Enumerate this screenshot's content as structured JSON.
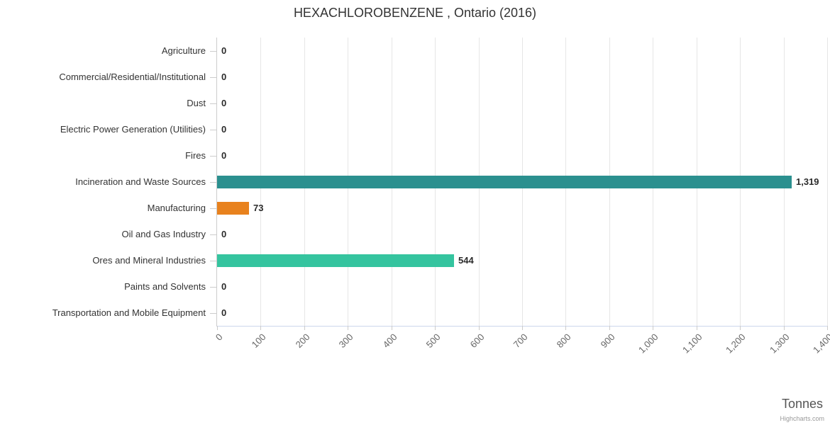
{
  "chart_data": {
    "type": "bar",
    "title": "HEXACHLOROBENZENE , Ontario (2016)",
    "xlabel": "Tonnes",
    "credit": "Highcharts.com",
    "xlim": [
      0,
      1400
    ],
    "tick_interval": 100,
    "tick_labels": [
      "0",
      "100",
      "200",
      "300",
      "400",
      "500",
      "600",
      "700",
      "800",
      "900",
      "1,000",
      "1,100",
      "1,200",
      "1,300",
      "1,400"
    ],
    "grid": true,
    "legend": "none",
    "categories": [
      "Agriculture",
      "Commercial/Residential/Institutional",
      "Dust",
      "Electric Power Generation (Utilities)",
      "Fires",
      "Incineration and Waste Sources",
      "Manufacturing",
      "Oil and Gas Industry",
      "Ores and Mineral Industries",
      "Paints and Solvents",
      "Transportation and Mobile Equipment"
    ],
    "values": [
      0,
      0,
      0,
      0,
      0,
      1319,
      73,
      0,
      544,
      0,
      0
    ],
    "value_labels": [
      "0",
      "0",
      "0",
      "0",
      "0",
      "1,319",
      "73",
      "0",
      "544",
      "0",
      "0"
    ],
    "bar_colors": [
      null,
      null,
      null,
      null,
      null,
      "#2b908f",
      "#e8821e",
      null,
      "#35c49f",
      null,
      null
    ],
    "style_colors": {
      "gridline": "#e6e6e6",
      "axis_line": "#cccccc",
      "title_text": "#333333",
      "label_text": "#333333",
      "tick_text": "#666666"
    }
  }
}
